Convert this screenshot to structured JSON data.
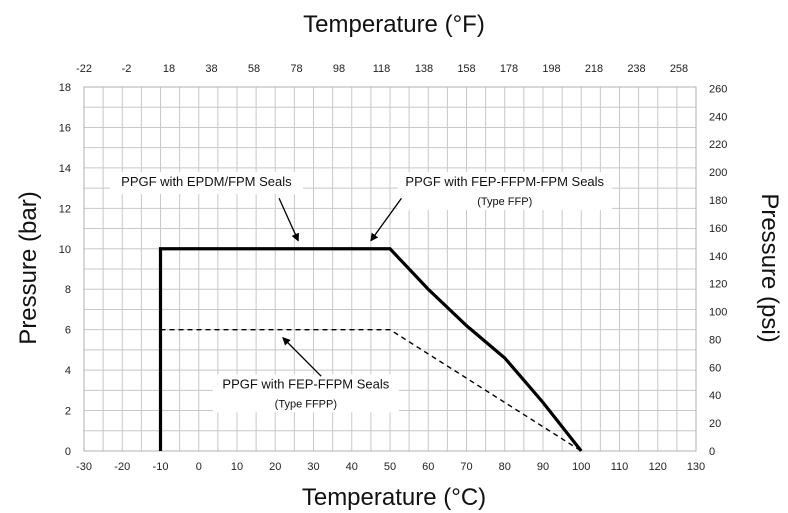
{
  "chart_data": {
    "type": "line",
    "xlabel": "Temperature (°C)",
    "ylabel": "Pressure (bar)",
    "x2label": "Temperature (°F)",
    "y2label": "Pressure (psi)",
    "xlim": [
      -30,
      130
    ],
    "ylim": [
      0,
      18
    ],
    "x2lim": [
      -22,
      266
    ],
    "y2lim": [
      0,
      261
    ],
    "x_ticks": [
      -30,
      -20,
      -10,
      0,
      10,
      20,
      30,
      40,
      50,
      60,
      70,
      80,
      90,
      100,
      110,
      120,
      130
    ],
    "y_ticks": [
      0,
      2,
      4,
      6,
      8,
      10,
      12,
      14,
      16,
      18
    ],
    "x2_ticks": [
      -22,
      -2,
      18,
      38,
      58,
      78,
      98,
      118,
      138,
      158,
      178,
      198,
      218,
      238,
      258
    ],
    "y2_ticks": [
      0,
      20,
      40,
      60,
      80,
      100,
      120,
      140,
      160,
      180,
      200,
      220,
      240,
      260
    ],
    "grid": true,
    "series": [
      {
        "name": "PPGF with EPDM/FPM Seals / PPGF with FEP-FFPM-FPM Seals (Type FFP)",
        "style": "solid",
        "color": "#000000",
        "x": [
          -10,
          -10,
          50,
          60,
          70,
          80,
          90,
          100
        ],
        "y": [
          0,
          10,
          10,
          8,
          6.2,
          4.6,
          2.4,
          0
        ]
      },
      {
        "name": "PPGF with FEP-FFPM Seals (Type FFPP)",
        "style": "dashed",
        "color": "#000000",
        "x": [
          -10,
          50,
          60,
          70,
          80,
          90,
          100
        ],
        "y": [
          6,
          6,
          4.8,
          3.6,
          2.4,
          1.2,
          0
        ]
      }
    ],
    "annotations": [
      {
        "id": "epdm",
        "lines": [
          "PPGF with  EPDM/FPM Seals"
        ],
        "label_at": [
          2,
          13.1
        ],
        "arrow_from": [
          21,
          12.5
        ],
        "arrow_to": [
          26,
          10.4
        ]
      },
      {
        "id": "ffp",
        "lines": [
          "PPGF with FEP-FFPM-FPM Seals",
          "(Type FFP)"
        ],
        "label_at": [
          80,
          13.1
        ],
        "arrow_from": [
          53,
          12.5
        ],
        "arrow_to": [
          45,
          10.4
        ]
      },
      {
        "id": "ffpp",
        "lines": [
          "PPGF with FEP-FFPM Seals",
          "(Type FFPP)"
        ],
        "label_at": [
          28,
          3.1
        ],
        "arrow_from": [
          32,
          3.7
        ],
        "arrow_to": [
          22,
          5.6
        ]
      }
    ]
  }
}
